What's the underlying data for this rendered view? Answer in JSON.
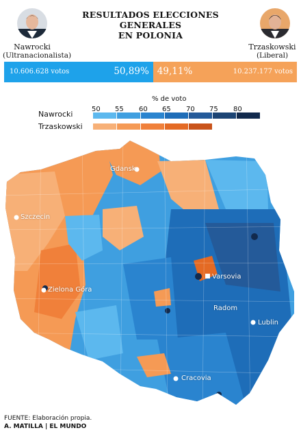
{
  "title": {
    "line1": "RESULTADOS ELECCIONES GENERALES",
    "line2": "EN POLONIA"
  },
  "candidates": [
    {
      "name": "Nawrocki",
      "affiliation": "(Ultranacionalista)",
      "votes": "10.606.628 votos",
      "percent": "50,89%",
      "share": 50.89,
      "color": "#1ea2ea"
    },
    {
      "name": "Trzaskowski",
      "affiliation": "(Liberal)",
      "votes": "10.237.177 votos",
      "percent": "49,11%",
      "share": 49.11,
      "color": "#f5a259"
    }
  ],
  "legend": {
    "title": "% de voto",
    "ticks": [
      "50",
      "55",
      "60",
      "65",
      "70",
      "75",
      "80"
    ],
    "rows": [
      {
        "label": "Nawrocki",
        "colors": [
          "#5cb8ee",
          "#3f9fe0",
          "#2a84cf",
          "#1e6db8",
          "#245a99",
          "#1c4474",
          "#122a4d"
        ]
      },
      {
        "label": "Trzaskowski",
        "colors": [
          "#f7b077",
          "#f59a55",
          "#f0803a",
          "#e46a24",
          "#c9531a"
        ]
      }
    ]
  },
  "cities": [
    {
      "name": "Gdansk"
    },
    {
      "name": "Szczecin"
    },
    {
      "name": "Varsovia"
    },
    {
      "name": "Zielona Góra"
    },
    {
      "name": "Radom"
    },
    {
      "name": "Lublin"
    },
    {
      "name": "Cracovia"
    }
  ],
  "footer": {
    "source": "FUENTE: Elaboración propia.",
    "credit": "A. MATILLA | EL MUNDO"
  }
}
